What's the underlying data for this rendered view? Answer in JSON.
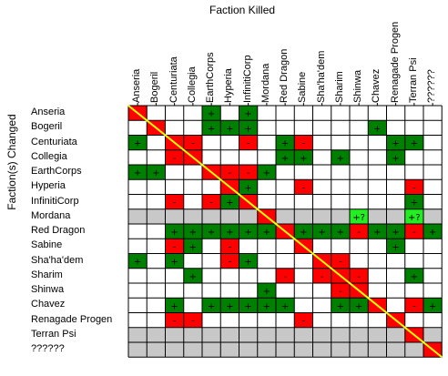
{
  "x_title": "Faction Killed",
  "y_title": "Faction(s) Changed",
  "factions": [
    "Anseria",
    "Bogeril",
    "Centuriata",
    "Collegia",
    "EarthCorps",
    "Hyperia",
    "InfinitiCorp",
    "Mordana",
    "Red Dragon",
    "Sabine",
    "Sha'ha'dem",
    "Sharim",
    "Shinwa",
    "Chavez",
    "Renagade Progen",
    "Terran Psi",
    "??????"
  ],
  "colors": {
    "positive": "#008000",
    "negative": "#ff0000",
    "strong_positive": "#22ee22",
    "self": "#ff0000",
    "disabled": "#c8c8c8",
    "diagonal": "#ffff00",
    "grid": "#000000"
  },
  "legend": {
    "positive": "+",
    "negative": "-",
    "strong_positive": "+?"
  },
  "grey_rows": [
    "Mordana",
    "Terran Psi",
    "??????"
  ],
  "cells": [
    {
      "row": "Anseria",
      "col": "EarthCorps",
      "value": "+"
    },
    {
      "row": "Anseria",
      "col": "InfinitiCorp",
      "value": "+"
    },
    {
      "row": "Bogeril",
      "col": "EarthCorps",
      "value": "+"
    },
    {
      "row": "Bogeril",
      "col": "Hyperia",
      "value": "+"
    },
    {
      "row": "Bogeril",
      "col": "InfinitiCorp",
      "value": "+"
    },
    {
      "row": "Bogeril",
      "col": "Chavez",
      "value": "+"
    },
    {
      "row": "Centuriata",
      "col": "Anseria",
      "value": "+"
    },
    {
      "row": "Centuriata",
      "col": "Collegia",
      "value": "-"
    },
    {
      "row": "Centuriata",
      "col": "InfinitiCorp",
      "value": "-"
    },
    {
      "row": "Centuriata",
      "col": "Red Dragon",
      "value": "+"
    },
    {
      "row": "Centuriata",
      "col": "Sabine",
      "value": "-"
    },
    {
      "row": "Centuriata",
      "col": "Renagade Progen",
      "value": "+"
    },
    {
      "row": "Centuriata",
      "col": "Terran Psi",
      "value": "+"
    },
    {
      "row": "Collegia",
      "col": "Centuriata",
      "value": "-"
    },
    {
      "row": "Collegia",
      "col": "Red Dragon",
      "value": "+"
    },
    {
      "row": "Collegia",
      "col": "Sabine",
      "value": "+"
    },
    {
      "row": "Collegia",
      "col": "Sharim",
      "value": "+"
    },
    {
      "row": "Collegia",
      "col": "Renagade Progen",
      "value": "+"
    },
    {
      "row": "EarthCorps",
      "col": "Anseria",
      "value": "+"
    },
    {
      "row": "EarthCorps",
      "col": "Bogeril",
      "value": "+"
    },
    {
      "row": "EarthCorps",
      "col": "Hyperia",
      "value": "-"
    },
    {
      "row": "EarthCorps",
      "col": "InfinitiCorp",
      "value": "-"
    },
    {
      "row": "EarthCorps",
      "col": "Mordana",
      "value": "+"
    },
    {
      "row": "Hyperia",
      "col": "InfinitiCorp",
      "value": "+"
    },
    {
      "row": "Hyperia",
      "col": "Sabine",
      "value": "-"
    },
    {
      "row": "Hyperia",
      "col": "Terran Psi",
      "value": "-"
    },
    {
      "row": "InfinitiCorp",
      "col": "Centuriata",
      "value": "-"
    },
    {
      "row": "InfinitiCorp",
      "col": "EarthCorps",
      "value": "-"
    },
    {
      "row": "InfinitiCorp",
      "col": "Hyperia",
      "value": "+"
    },
    {
      "row": "InfinitiCorp",
      "col": "Terran Psi",
      "value": "+"
    },
    {
      "row": "Mordana",
      "col": "Shinwa",
      "value": "+?"
    },
    {
      "row": "Mordana",
      "col": "Terran Psi",
      "value": "+?"
    },
    {
      "row": "Red Dragon",
      "col": "Centuriata",
      "value": "+"
    },
    {
      "row": "Red Dragon",
      "col": "Collegia",
      "value": "+"
    },
    {
      "row": "Red Dragon",
      "col": "EarthCorps",
      "value": "+"
    },
    {
      "row": "Red Dragon",
      "col": "Hyperia",
      "value": "+"
    },
    {
      "row": "Red Dragon",
      "col": "InfinitiCorp",
      "value": "+"
    },
    {
      "row": "Red Dragon",
      "col": "Mordana",
      "value": "+"
    },
    {
      "row": "Red Dragon",
      "col": "Sabine",
      "value": "+"
    },
    {
      "row": "Red Dragon",
      "col": "Sha'ha'dem",
      "value": "+"
    },
    {
      "row": "Red Dragon",
      "col": "Sharim",
      "value": "+"
    },
    {
      "row": "Red Dragon",
      "col": "Shinwa",
      "value": "-"
    },
    {
      "row": "Red Dragon",
      "col": "Chavez",
      "value": "+"
    },
    {
      "row": "Red Dragon",
      "col": "Renagade Progen",
      "value": "+"
    },
    {
      "row": "Red Dragon",
      "col": "Terran Psi",
      "value": "-"
    },
    {
      "row": "Red Dragon",
      "col": "??????",
      "value": "+"
    },
    {
      "row": "Sabine",
      "col": "Centuriata",
      "value": "-"
    },
    {
      "row": "Sabine",
      "col": "Collegia",
      "value": "+"
    },
    {
      "row": "Sabine",
      "col": "Hyperia",
      "value": "-"
    },
    {
      "row": "Sabine",
      "col": "Renagade Progen",
      "value": "+"
    },
    {
      "row": "Sha'ha'dem",
      "col": "Anseria",
      "value": "+"
    },
    {
      "row": "Sha'ha'dem",
      "col": "Centuriata",
      "value": "+"
    },
    {
      "row": "Sha'ha'dem",
      "col": "Hyperia",
      "value": "-"
    },
    {
      "row": "Sha'ha'dem",
      "col": "InfinitiCorp",
      "value": "+"
    },
    {
      "row": "Sha'ha'dem",
      "col": "Sharim",
      "value": "-"
    },
    {
      "row": "Sharim",
      "col": "Collegia",
      "value": "+"
    },
    {
      "row": "Sharim",
      "col": "Red Dragon",
      "value": "-"
    },
    {
      "row": "Sharim",
      "col": "Sha'ha'dem",
      "value": "-"
    },
    {
      "row": "Sharim",
      "col": "Shinwa",
      "value": "-"
    },
    {
      "row": "Sharim",
      "col": "Terran Psi",
      "value": "+"
    },
    {
      "row": "Shinwa",
      "col": "Mordana",
      "value": "+"
    },
    {
      "row": "Shinwa",
      "col": "Sharim",
      "value": "-"
    },
    {
      "row": "Chavez",
      "col": "Centuriata",
      "value": "+"
    },
    {
      "row": "Chavez",
      "col": "EarthCorps",
      "value": "+"
    },
    {
      "row": "Chavez",
      "col": "Hyperia",
      "value": "+"
    },
    {
      "row": "Chavez",
      "col": "InfinitiCorp",
      "value": "+"
    },
    {
      "row": "Chavez",
      "col": "Mordana",
      "value": "+"
    },
    {
      "row": "Chavez",
      "col": "Red Dragon",
      "value": "+"
    },
    {
      "row": "Chavez",
      "col": "Sharim",
      "value": "+"
    },
    {
      "row": "Chavez",
      "col": "Shinwa",
      "value": "+"
    },
    {
      "row": "Chavez",
      "col": "Terran Psi",
      "value": "-"
    },
    {
      "row": "Chavez",
      "col": "??????",
      "value": "+"
    },
    {
      "row": "Renagade Progen",
      "col": "Centuriata",
      "value": "-"
    },
    {
      "row": "Renagade Progen",
      "col": "Collegia",
      "value": "-"
    },
    {
      "row": "Renagade Progen",
      "col": "Sabine",
      "value": "-"
    }
  ]
}
